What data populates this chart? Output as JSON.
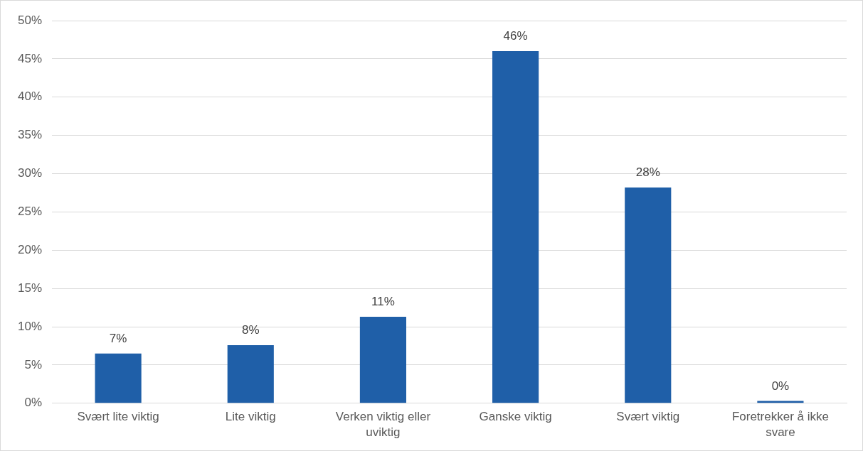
{
  "chart_data": {
    "type": "bar",
    "categories": [
      "Svært lite viktig",
      "Lite viktig",
      "Verken viktig eller uviktig",
      "Ganske viktig",
      "Svært viktig",
      "Foretrekker å ikke svare"
    ],
    "values": [
      6.5,
      7.6,
      11.3,
      46,
      28.2,
      0.3
    ],
    "value_labels": [
      "7%",
      "8%",
      "11%",
      "46%",
      "28%",
      "0%"
    ],
    "color": "#1f5fa8",
    "ylim": [
      0,
      50
    ],
    "yticks": [
      {
        "value": 0,
        "label": "0%"
      },
      {
        "value": 5,
        "label": "5%"
      },
      {
        "value": 10,
        "label": "10%"
      },
      {
        "value": 15,
        "label": "15%"
      },
      {
        "value": 20,
        "label": "20%"
      },
      {
        "value": 25,
        "label": "25%"
      },
      {
        "value": 30,
        "label": "30%"
      },
      {
        "value": 35,
        "label": "35%"
      },
      {
        "value": 40,
        "label": "40%"
      },
      {
        "value": 45,
        "label": "45%"
      },
      {
        "value": 50,
        "label": "50%"
      }
    ],
    "grid": "y",
    "legend": false
  }
}
